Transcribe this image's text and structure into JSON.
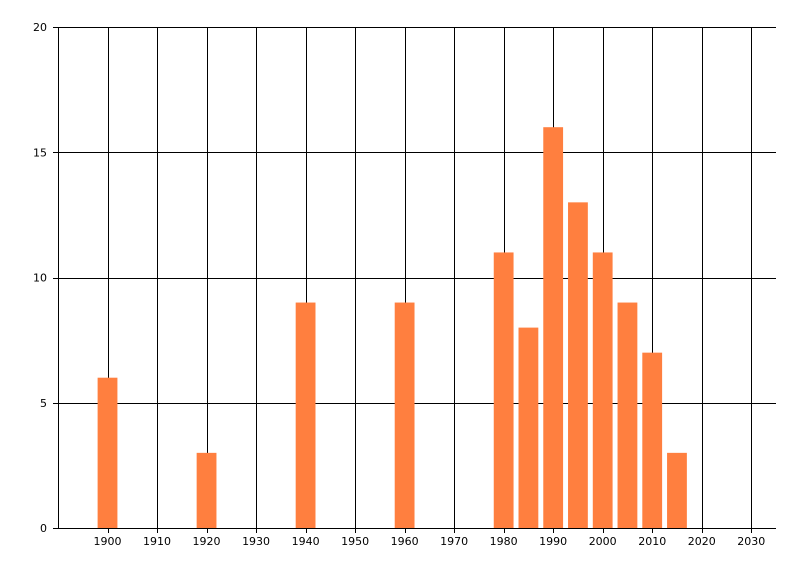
{
  "chart_data": {
    "type": "bar",
    "title": "",
    "xlabel": "",
    "ylabel": "",
    "x": [
      1900,
      1920,
      1940,
      1960,
      1980,
      1985,
      1990,
      1995,
      2000,
      2005,
      2010,
      2015
    ],
    "values": [
      6,
      3,
      9,
      9,
      11,
      8,
      16,
      13,
      11,
      9,
      7,
      3
    ],
    "xlim": [
      1890,
      2035
    ],
    "ylim": [
      0,
      20
    ],
    "x_ticks": [
      "1900",
      "1910",
      "1920",
      "1930",
      "1940",
      "1950",
      "1960",
      "1970",
      "1980",
      "1990",
      "2000",
      "2010",
      "2020",
      "2030"
    ],
    "y_ticks": [
      "0",
      "5",
      "10",
      "15",
      "20"
    ],
    "bar_width": 4,
    "grid": true,
    "legend": "none",
    "colors": {
      "bar": "#FF7F3F",
      "grid": "#000000",
      "axis": "#000000"
    }
  }
}
